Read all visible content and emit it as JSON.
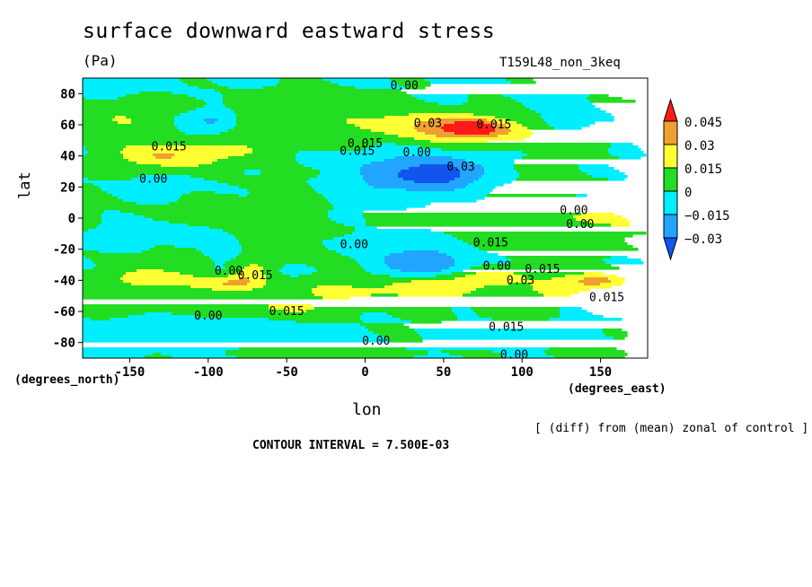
{
  "chart_data": {
    "type": "heatmap",
    "title": "surface downward eastward stress",
    "units": "(Pa)",
    "run_label": "T159L48_non_3keq",
    "xlabel": "lon",
    "ylabel": "lat",
    "x_units_label": "(degrees_east)",
    "y_units_label": "(degrees_north)",
    "xlim": [
      -180,
      180
    ],
    "ylim": [
      -90,
      90
    ],
    "x_ticks": [
      "-150",
      "-100",
      "-50",
      "0",
      "50",
      "100",
      "150"
    ],
    "x_tick_values": [
      -150,
      -100,
      -50,
      0,
      50,
      100,
      150
    ],
    "y_ticks": [
      "80",
      "60",
      "40",
      "20",
      "0",
      "-20",
      "-40",
      "-60",
      "-80"
    ],
    "y_tick_values": [
      80,
      60,
      40,
      20,
      0,
      -20,
      -40,
      -60,
      -80
    ],
    "contour_interval_text": "CONTOUR INTERVAL = 7.500E-03",
    "note": "[ (diff) from (mean) zonal of control ]",
    "colorbar": {
      "labels": [
        "0.045",
        "0.03",
        "0.015",
        "0",
        "−0.015",
        "−0.03"
      ],
      "bins": [
        {
          "from": 0.045,
          "to": null,
          "color": "#ff1a1a"
        },
        {
          "from": 0.03,
          "to": 0.045,
          "color": "#f0a030"
        },
        {
          "from": 0.015,
          "to": 0.03,
          "color": "#ffff33"
        },
        {
          "from": 0.0,
          "to": 0.015,
          "color": "#22dd22"
        },
        {
          "from": -0.015,
          "to": 0.0,
          "color": "#00eeff"
        },
        {
          "from": -0.03,
          "to": -0.015,
          "color": "#22a5ff"
        },
        {
          "from": null,
          "to": -0.03,
          "color": "#1155ee"
        }
      ]
    },
    "contour_labels": [
      {
        "text": "0.00",
        "lon": 25,
        "lat": 85
      },
      {
        "text": "0.03",
        "lon": 40,
        "lat": 61
      },
      {
        "text": "0.015",
        "lon": 82,
        "lat": 60
      },
      {
        "text": "0.015",
        "lon": -125,
        "lat": 46
      },
      {
        "text": "0.015",
        "lon": 0,
        "lat": 48
      },
      {
        "text": "0.015",
        "lon": -5,
        "lat": 43
      },
      {
        "text": "0.00",
        "lon": 33,
        "lat": 42
      },
      {
        "text": "0.03",
        "lon": 61,
        "lat": 33
      },
      {
        "text": "0.00",
        "lon": -135,
        "lat": 25
      },
      {
        "text": "0.00",
        "lon": 133,
        "lat": 5
      },
      {
        "text": "0.00",
        "lon": 137,
        "lat": -4
      },
      {
        "text": "0.00",
        "lon": -7,
        "lat": -17
      },
      {
        "text": "0.015",
        "lon": 80,
        "lat": -16
      },
      {
        "text": "0.00",
        "lon": -87,
        "lat": -34
      },
      {
        "text": "0.015",
        "lon": -70,
        "lat": -37
      },
      {
        "text": "0.00",
        "lon": 84,
        "lat": -31
      },
      {
        "text": "0.015",
        "lon": 113,
        "lat": -33
      },
      {
        "text": "0.03",
        "lon": 99,
        "lat": -40
      },
      {
        "text": "0.015",
        "lon": 154,
        "lat": -51
      },
      {
        "text": "0.015",
        "lon": -50,
        "lat": -60
      },
      {
        "text": "0.00",
        "lon": -100,
        "lat": -63
      },
      {
        "text": "0.015",
        "lon": 90,
        "lat": -70
      },
      {
        "text": "0.00",
        "lon": 7,
        "lat": -79
      },
      {
        "text": "0.00",
        "lon": 95,
        "lat": -88
      }
    ]
  }
}
